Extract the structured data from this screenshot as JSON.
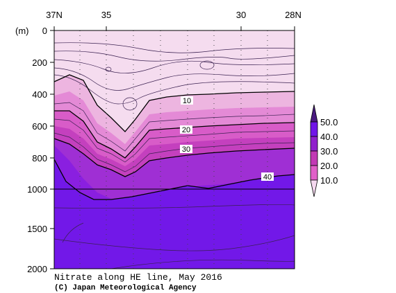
{
  "chart_data": {
    "type": "contour",
    "title": "Nitrate along HE line, May 2016",
    "credit": "(C) Japan Meteorological Agency",
    "unit_label": "(m)",
    "x_ticks": [
      "37N",
      "35",
      "30",
      "28N"
    ],
    "x_range": [
      37,
      28
    ],
    "y_ticks": [
      "0",
      "200",
      "400",
      "600",
      "800",
      "1000",
      "1500",
      "2000"
    ],
    "y_range": [
      0,
      2000
    ],
    "y_break": 1000,
    "contour_labels": [
      "10",
      "20",
      "30",
      "40"
    ],
    "colorbar": {
      "levels": [
        "50.0",
        "40.0",
        "30.0",
        "20.0",
        "10.0"
      ],
      "colors": [
        "#4a1a80",
        "#7015e8",
        "#9020cc",
        "#c23ab5",
        "#e060c8",
        "#f5d8ef"
      ]
    }
  }
}
